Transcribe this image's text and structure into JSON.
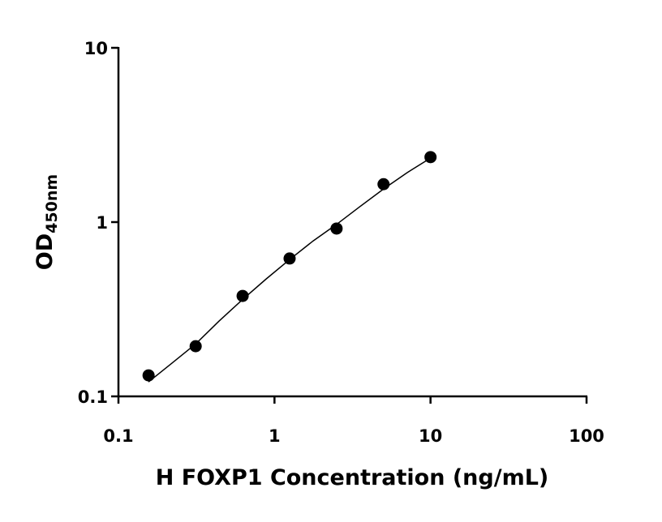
{
  "chart_data": {
    "type": "scatter",
    "xlabel": "H FOXP1 Concentration (ng/mL)",
    "ylabel": "OD",
    "ylabel_sub": "450nm",
    "x": [
      0.156,
      0.3125,
      0.625,
      1.25,
      2.5,
      5,
      10
    ],
    "values": [
      0.132,
      0.194,
      0.377,
      0.618,
      0.918,
      1.65,
      2.36
    ],
    "color": "#000000",
    "fit": {
      "x": [
        0.156,
        0.22,
        0.3125,
        0.44,
        0.625,
        0.88,
        1.25,
        1.77,
        2.5,
        3.54,
        5,
        7.07,
        10
      ],
      "values": [
        0.121,
        0.155,
        0.2,
        0.27,
        0.36,
        0.47,
        0.61,
        0.78,
        0.97,
        1.23,
        1.55,
        1.92,
        2.33
      ]
    },
    "xscale": "log",
    "yscale": "log",
    "xlim": [
      0.1,
      100
    ],
    "ylim": [
      0.1,
      10
    ],
    "xticks": [
      0.1,
      1,
      10,
      100
    ],
    "yticks": [
      0.1,
      1,
      10
    ]
  }
}
